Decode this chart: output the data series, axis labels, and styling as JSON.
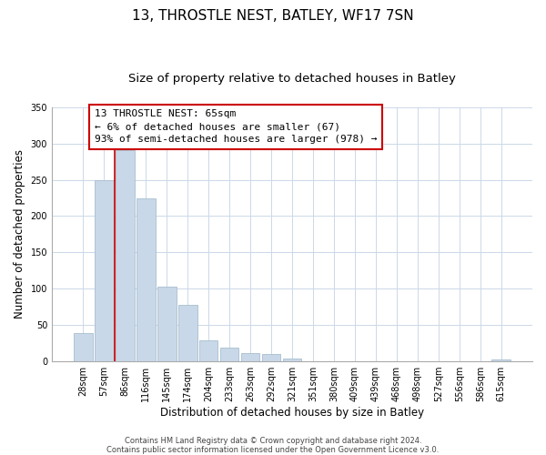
{
  "title": "13, THROSTLE NEST, BATLEY, WF17 7SN",
  "subtitle": "Size of property relative to detached houses in Batley",
  "xlabel": "Distribution of detached houses by size in Batley",
  "ylabel": "Number of detached properties",
  "bar_labels": [
    "28sqm",
    "57sqm",
    "86sqm",
    "116sqm",
    "145sqm",
    "174sqm",
    "204sqm",
    "233sqm",
    "263sqm",
    "292sqm",
    "321sqm",
    "351sqm",
    "380sqm",
    "409sqm",
    "439sqm",
    "468sqm",
    "498sqm",
    "527sqm",
    "556sqm",
    "586sqm",
    "615sqm"
  ],
  "bar_values": [
    39,
    250,
    291,
    225,
    103,
    78,
    29,
    19,
    12,
    10,
    4,
    0,
    0,
    0,
    0,
    0,
    0,
    0,
    0,
    0,
    2
  ],
  "bar_color": "#c8d8e8",
  "bar_edgecolor": "#a8bece",
  "annotation_text_line1": "13 THROSTLE NEST: 65sqm",
  "annotation_text_line2": "← 6% of detached houses are smaller (67)",
  "annotation_text_line3": "93% of semi-detached houses are larger (978) →",
  "annotation_box_color": "#ffffff",
  "annotation_box_edgecolor": "#cc0000",
  "vertical_line_color": "#cc0000",
  "ylim": [
    0,
    350
  ],
  "yticks": [
    0,
    50,
    100,
    150,
    200,
    250,
    300,
    350
  ],
  "footer_line1": "Contains HM Land Registry data © Crown copyright and database right 2024.",
  "footer_line2": "Contains public sector information licensed under the Open Government Licence v3.0.",
  "title_fontsize": 11,
  "subtitle_fontsize": 9.5,
  "axis_label_fontsize": 8.5,
  "tick_fontsize": 7,
  "annotation_fontsize": 8,
  "footer_fontsize": 6,
  "background_color": "#ffffff",
  "grid_color": "#ccd8e8"
}
